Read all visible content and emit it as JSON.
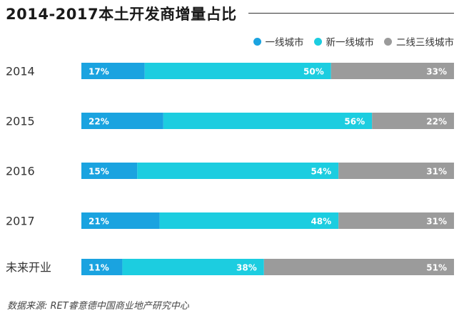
{
  "title": "2014-2017本土开发商增量占比",
  "source": "数据来源: RET睿意德中国商业地产研究中心",
  "colors": {
    "tier1": "#1aa3e0",
    "new_tier1": "#1ccde0",
    "tier23": "#9b9b9b",
    "label": "#ffffff"
  },
  "chart_data": {
    "type": "bar",
    "orientation": "horizontal",
    "stacked": true,
    "categories": [
      "2014",
      "2015",
      "2016",
      "2017",
      "未来开业"
    ],
    "series": [
      {
        "name": "一线城市",
        "values": [
          17,
          22,
          15,
          21,
          11
        ]
      },
      {
        "name": "新一线城市",
        "values": [
          50,
          56,
          54,
          48,
          38
        ]
      },
      {
        "name": "二线三线城市",
        "values": [
          33,
          22,
          31,
          31,
          51
        ]
      }
    ],
    "unit": "%",
    "xlim": [
      0,
      100
    ],
    "legend_position": "top-right",
    "grid": false
  }
}
